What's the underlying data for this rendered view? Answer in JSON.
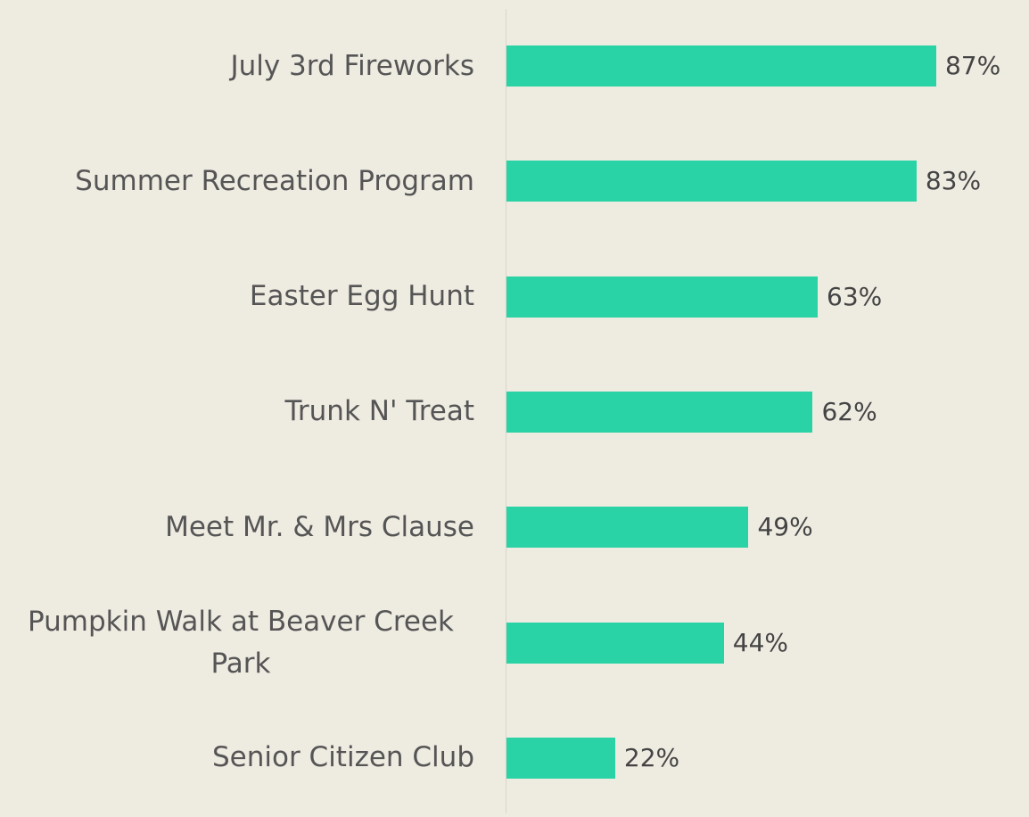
{
  "chart_data": {
    "type": "bar",
    "orientation": "horizontal",
    "categories": [
      "July 3rd Fireworks",
      "Summer Recreation Program",
      "Easter Egg Hunt",
      "Trunk N' Treat",
      "Meet Mr. & Mrs Clause",
      "Pumpkin Walk at Beaver Creek Park",
      "Senior Citizen Club"
    ],
    "values": [
      87,
      83,
      63,
      62,
      49,
      44,
      22
    ],
    "value_labels": [
      "87%",
      "83%",
      "63%",
      "62%",
      "49%",
      "44%",
      "22%"
    ],
    "color": "#29d3a5"
  }
}
